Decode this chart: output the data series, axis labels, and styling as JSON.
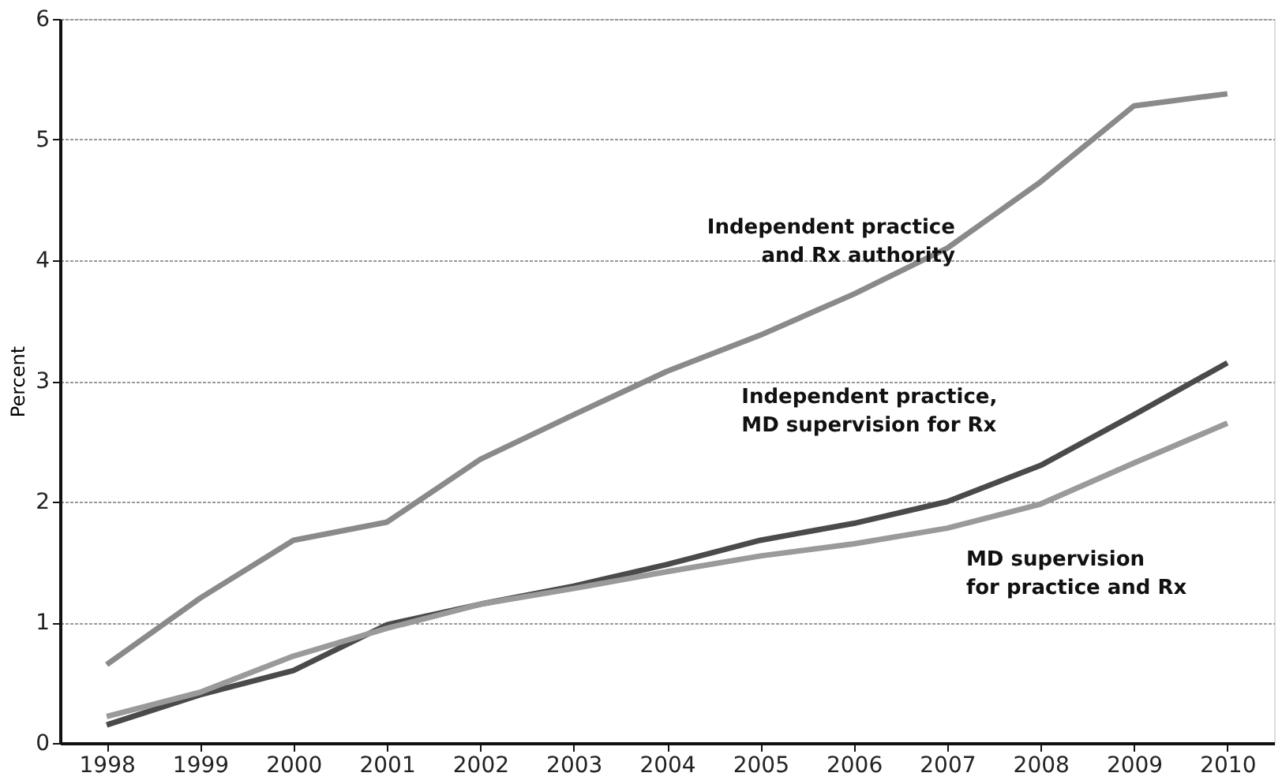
{
  "chart_data": {
    "type": "line",
    "ylabel": "Percent",
    "categories": [
      "1998",
      "1999",
      "2000",
      "2001",
      "2002",
      "2003",
      "2004",
      "2005",
      "2006",
      "2007",
      "2008",
      "2009",
      "2010"
    ],
    "series": [
      {
        "name": "Independent practice and Rx authority",
        "color": "#8a8a8a",
        "values": [
          0.65,
          1.2,
          1.68,
          1.83,
          2.35,
          2.72,
          3.08,
          3.38,
          3.72,
          4.1,
          4.65,
          5.28,
          5.38
        ]
      },
      {
        "name": "Independent practice, MD supervision for Rx",
        "color": "#4a4a4a",
        "values": [
          0.15,
          0.4,
          0.6,
          0.98,
          1.15,
          1.3,
          1.48,
          1.68,
          1.82,
          2.0,
          2.3,
          2.72,
          3.15
        ]
      },
      {
        "name": "MD supervision for practice and Rx",
        "color": "#9a9a9a",
        "values": [
          0.22,
          0.42,
          0.72,
          0.95,
          1.15,
          1.28,
          1.42,
          1.55,
          1.65,
          1.78,
          1.98,
          2.32,
          2.65
        ]
      }
    ],
    "ylim": [
      0,
      6
    ],
    "yticks": [
      0,
      1,
      2,
      3,
      4,
      5,
      6
    ],
    "grid": "y",
    "legend": false,
    "marker": "none",
    "line_style": "solid"
  }
}
